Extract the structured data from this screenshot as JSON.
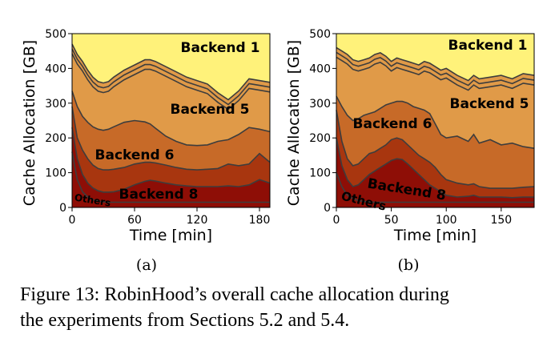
{
  "caption_line1": "Figure 13: RobinHood’s overall cache allocation during",
  "caption_line2": "the experiments from Sections 5.2 and 5.4.",
  "colors": {
    "Others": "#8e0e06",
    "Backend 8": "#a8360f",
    "Backend 6": "#c76a28",
    "Backend 5": "#e09a48",
    "Backend 1": "#fff27a",
    "boundary": "#3d3d3d"
  },
  "chart_data": [
    {
      "type": "area",
      "sublabel": "(a)",
      "xlabel": "Time [min]",
      "ylabel": "Cache Allocation [GB]",
      "xlim": [
        0,
        190
      ],
      "ylim": [
        0,
        500
      ],
      "xticks": [
        0,
        60,
        120,
        180
      ],
      "xtick_labels": [
        "0",
        "60",
        "120",
        "180"
      ],
      "yticks": [
        0,
        100,
        200,
        300,
        400,
        500
      ],
      "ytick_labels": [
        "0",
        "100",
        "200",
        "300",
        "400",
        "500"
      ],
      "grid": false,
      "x": [
        0,
        5,
        10,
        15,
        20,
        25,
        30,
        35,
        40,
        50,
        60,
        70,
        75,
        80,
        90,
        100,
        110,
        120,
        130,
        140,
        150,
        160,
        170,
        180,
        190
      ],
      "series": [
        {
          "name": "Others",
          "values": [
            160,
            80,
            45,
            30,
            22,
            18,
            16,
            15,
            15,
            15,
            15,
            15,
            15,
            15,
            15,
            15,
            15,
            15,
            15,
            15,
            15,
            15,
            15,
            15,
            15
          ]
        },
        {
          "name": "Backend 8",
          "values": [
            230,
            140,
            95,
            70,
            56,
            48,
            44,
            44,
            45,
            52,
            65,
            75,
            78,
            76,
            70,
            65,
            62,
            60,
            60,
            60,
            62,
            60,
            65,
            80,
            70
          ]
        },
        {
          "name": "Backend 6",
          "values": [
            290,
            200,
            165,
            140,
            122,
            112,
            108,
            108,
            110,
            115,
            125,
            130,
            130,
            128,
            122,
            115,
            110,
            108,
            110,
            112,
            125,
            120,
            125,
            155,
            130
          ]
        },
        {
          "name": "Backend 5",
          "values": [
            335,
            290,
            262,
            245,
            232,
            225,
            222,
            225,
            232,
            245,
            250,
            246,
            240,
            228,
            205,
            190,
            180,
            178,
            180,
            190,
            195,
            210,
            230,
            225,
            218
          ]
        },
        {
          "name": "Backend 1",
          "values": [
            470,
            440,
            420,
            395,
            375,
            362,
            358,
            362,
            375,
            395,
            410,
            425,
            425,
            420,
            405,
            390,
            375,
            365,
            355,
            330,
            310,
            335,
            370,
            365,
            360
          ]
        }
      ],
      "labels": [
        "Backend 1",
        "Backend 5",
        "Backend 6",
        "Backend 8",
        "Others"
      ]
    },
    {
      "type": "area",
      "sublabel": "(b)",
      "xlabel": "Time [min]",
      "ylabel": "Cache Allocation [GB]",
      "xlim": [
        0,
        180
      ],
      "ylim": [
        0,
        500
      ],
      "xticks": [
        0,
        50,
        100,
        150
      ],
      "xtick_labels": [
        "0",
        "50",
        "100",
        "150"
      ],
      "yticks": [
        0,
        100,
        200,
        300,
        400,
        500
      ],
      "ytick_labels": [
        "0",
        "100",
        "200",
        "300",
        "400",
        "500"
      ],
      "grid": false,
      "x": [
        0,
        5,
        10,
        15,
        20,
        25,
        30,
        35,
        40,
        45,
        50,
        55,
        60,
        65,
        70,
        75,
        80,
        85,
        90,
        95,
        100,
        110,
        120,
        125,
        130,
        140,
        150,
        160,
        170,
        180
      ],
      "series": [
        {
          "name": "Others",
          "values": [
            100,
            60,
            35,
            25,
            20,
            17,
            16,
            15,
            15,
            15,
            15,
            15,
            15,
            15,
            15,
            15,
            15,
            15,
            15,
            15,
            15,
            15,
            15,
            15,
            15,
            15,
            15,
            15,
            15,
            15
          ]
        },
        {
          "name": "Backend 8",
          "values": [
            200,
            120,
            80,
            60,
            65,
            80,
            95,
            105,
            115,
            125,
            135,
            140,
            138,
            125,
            110,
            95,
            80,
            65,
            55,
            45,
            35,
            30,
            32,
            35,
            30,
            30,
            30,
            28,
            30,
            30
          ]
        },
        {
          "name": "Backend 6",
          "values": [
            280,
            190,
            140,
            120,
            125,
            140,
            155,
            160,
            170,
            180,
            195,
            200,
            195,
            180,
            165,
            150,
            140,
            130,
            115,
            95,
            80,
            70,
            65,
            68,
            60,
            55,
            55,
            55,
            58,
            60
          ]
        },
        {
          "name": "Backend 5",
          "values": [
            320,
            290,
            265,
            250,
            255,
            265,
            270,
            275,
            285,
            295,
            300,
            305,
            305,
            300,
            290,
            285,
            280,
            270,
            240,
            210,
            200,
            205,
            190,
            210,
            185,
            195,
            180,
            185,
            175,
            170
          ]
        },
        {
          "name": "Backend 1",
          "values": [
            460,
            450,
            440,
            425,
            420,
            425,
            430,
            440,
            445,
            435,
            420,
            430,
            425,
            420,
            415,
            410,
            420,
            415,
            405,
            395,
            400,
            380,
            365,
            380,
            370,
            375,
            380,
            370,
            385,
            380
          ]
        }
      ],
      "labels": [
        "Backend 1",
        "Backend 5",
        "Backend 6",
        "Backend 8",
        "Others"
      ]
    }
  ]
}
